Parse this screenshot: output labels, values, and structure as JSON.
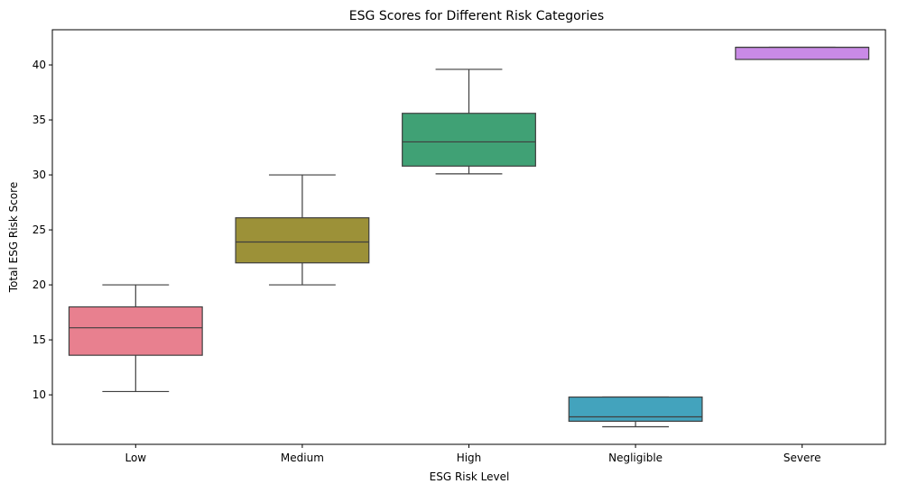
{
  "chart_data": {
    "type": "box",
    "title": "ESG Scores for Different Risk Categories",
    "xlabel": "ESG Risk Level",
    "ylabel": "Total ESG Risk Score",
    "ylim": [
      5.5,
      43.2
    ],
    "yticks": [
      10,
      15,
      20,
      25,
      30,
      35,
      40
    ],
    "ytick_labels": [
      "10",
      "15",
      "20",
      "25",
      "30",
      "35",
      "40"
    ],
    "grid": false,
    "categories": [
      "Low",
      "Medium",
      "High",
      "Negligible",
      "Severe"
    ],
    "boxes": [
      {
        "category": "Low",
        "min": 10.3,
        "q1": 13.6,
        "median": 16.1,
        "q3": 18.0,
        "max": 20.0,
        "color": "#e8808f"
      },
      {
        "category": "Medium",
        "min": 20.0,
        "q1": 22.0,
        "median": 23.9,
        "q3": 26.1,
        "max": 30.0,
        "color": "#9c9138"
      },
      {
        "category": "High",
        "min": 30.1,
        "q1": 30.8,
        "median": 33.0,
        "q3": 35.6,
        "max": 39.6,
        "color": "#40a175"
      },
      {
        "category": "Negligible",
        "min": 7.1,
        "q1": 7.6,
        "median": 8.0,
        "q3": 9.8,
        "max": 9.8,
        "color": "#43a3bd"
      },
      {
        "category": "Severe",
        "min": 40.5,
        "q1": 40.5,
        "median": 41.6,
        "q3": 41.6,
        "max": 41.6,
        "color": "#c98ae6"
      }
    ]
  }
}
